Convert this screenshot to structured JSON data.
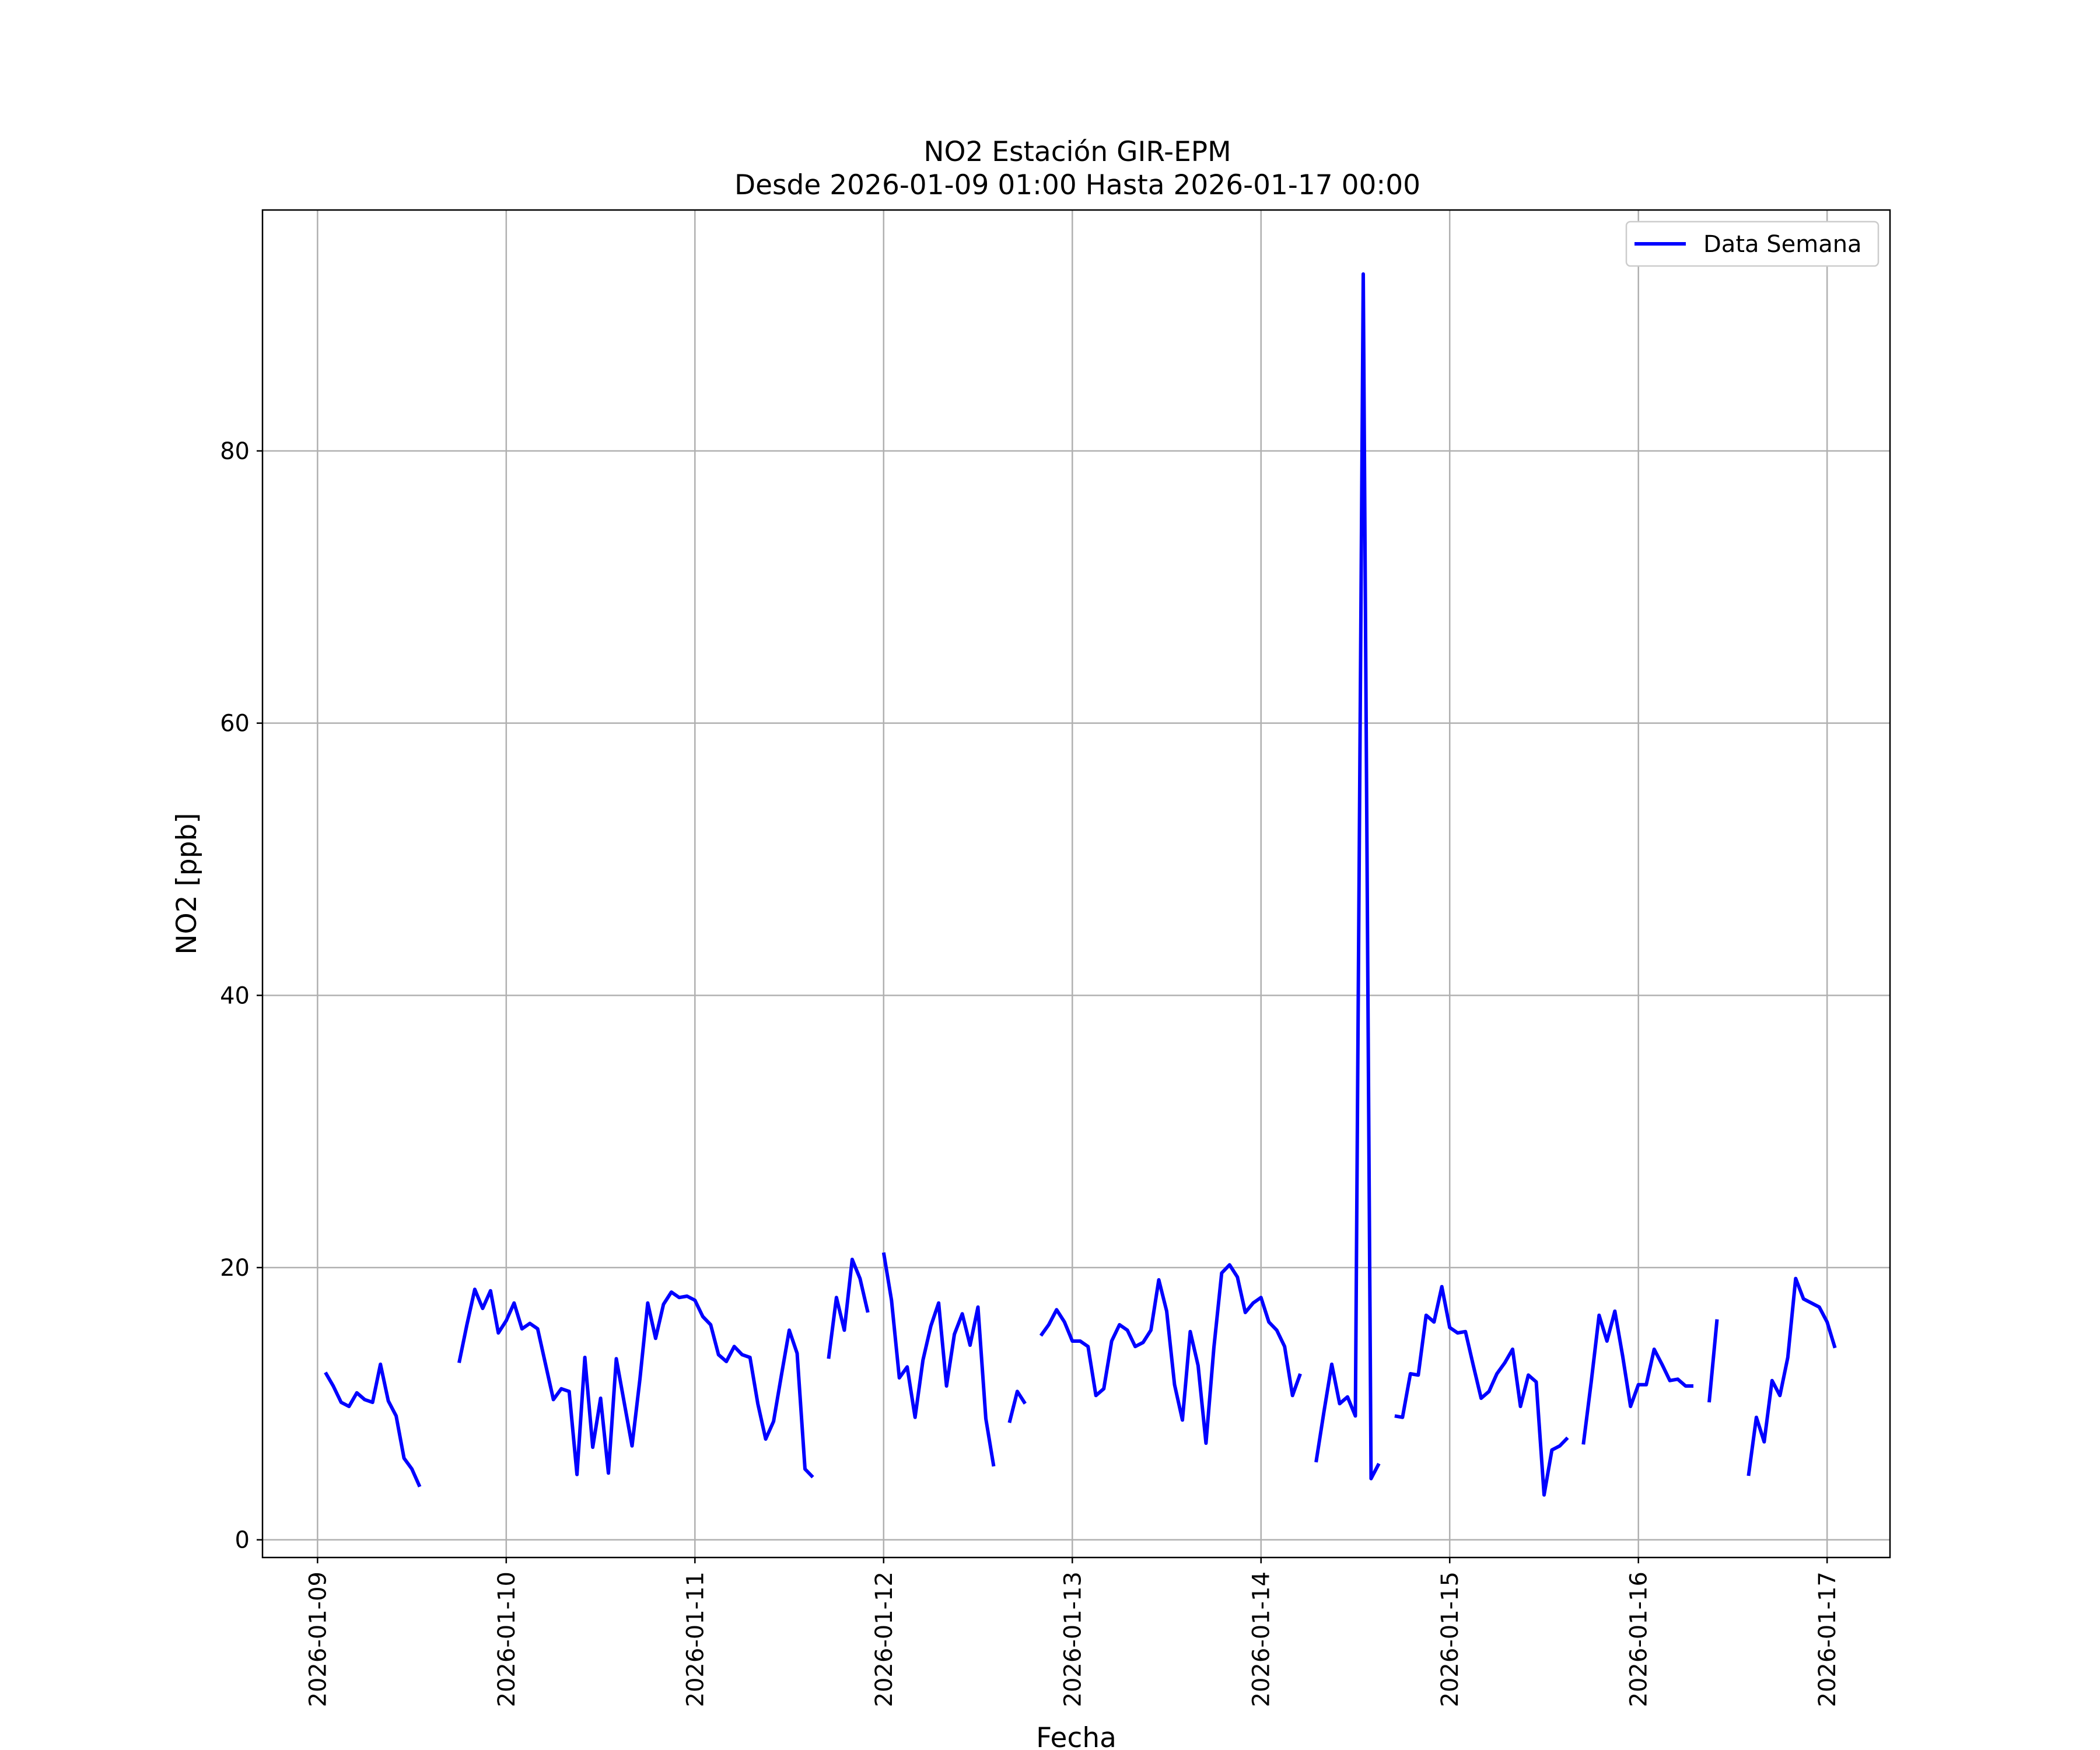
{
  "chart_data": {
    "type": "line",
    "title": "NO2 Estación GIR-EPM",
    "subtitle": "Desde 2026-01-09 01:00 Hasta 2026-01-17 00:00",
    "xlabel": "Fecha",
    "ylabel": "NO2 [ppb]",
    "xlim": [
      "2026-01-08 17:00",
      "2026-01-17 08:00"
    ],
    "ylim": [
      -1.3,
      97.7
    ],
    "yticks": [
      0,
      20,
      40,
      60,
      80
    ],
    "xticks": [
      "2026-01-09",
      "2026-01-10",
      "2026-01-11",
      "2026-01-12",
      "2026-01-13",
      "2026-01-14",
      "2026-01-15",
      "2026-01-16",
      "2026-01-17"
    ],
    "grid": true,
    "legend_position": "top-right",
    "colors": {
      "line": "#0000ff",
      "grid": "#b0b0b0"
    },
    "series": [
      {
        "name": "Data Semana",
        "x_start": "2026-01-09 01:00",
        "x_step_hours": 1,
        "values": [
          12.3,
          11.3,
          10.1,
          9.8,
          10.8,
          10.3,
          10.1,
          12.9,
          10.2,
          9.1,
          6.0,
          5.2,
          3.9,
          null,
          null,
          null,
          null,
          13.0,
          15.8,
          18.4,
          17.0,
          18.3,
          15.2,
          16.1,
          17.4,
          15.5,
          15.9,
          15.5,
          12.9,
          10.3,
          11.1,
          10.9,
          4.8,
          13.4,
          6.8,
          10.4,
          4.9,
          13.3,
          10.1,
          6.9,
          11.8,
          17.4,
          14.8,
          17.3,
          18.2,
          17.8,
          17.9,
          17.6,
          16.4,
          15.8,
          13.6,
          13.1,
          14.2,
          13.6,
          13.4,
          10.0,
          7.4,
          8.7,
          12.1,
          15.4,
          13.7,
          5.2,
          4.6,
          null,
          13.3,
          17.8,
          15.4,
          20.6,
          19.2,
          16.7,
          null,
          21.1,
          17.6,
          11.9,
          12.7,
          9.0,
          13.2,
          15.7,
          17.4,
          11.3,
          15.1,
          16.6,
          14.3,
          17.1,
          8.9,
          5.4,
          null,
          8.6,
          10.9,
          10.0,
          null,
          15.0,
          15.8,
          16.9,
          16.0,
          14.6,
          14.6,
          14.2,
          10.6,
          11.1,
          14.6,
          15.8,
          15.4,
          14.2,
          14.5,
          15.4,
          19.1,
          16.8,
          11.4,
          8.8,
          15.3,
          12.8,
          7.1,
          14.1,
          19.6,
          20.2,
          19.3,
          16.7,
          17.4,
          17.8,
          16.0,
          15.4,
          14.2,
          10.6,
          12.2,
          null,
          5.7,
          9.4,
          12.9,
          10.0,
          10.5,
          9.1,
          93.0,
          4.5,
          5.6,
          null,
          9.1,
          9.0,
          12.2,
          12.1,
          16.5,
          16.0,
          18.6,
          15.6,
          15.2,
          15.3,
          12.8,
          10.4,
          10.9,
          12.2,
          13.0,
          14.0,
          9.8,
          12.1,
          11.6,
          3.3,
          6.6,
          6.9,
          7.5,
          null,
          7.0,
          11.6,
          16.5,
          14.6,
          16.8,
          13.5,
          9.8,
          11.4,
          11.4,
          14.0,
          12.9,
          11.7,
          11.8,
          11.3,
          11.3,
          null,
          10.1,
          16.2,
          null,
          null,
          null,
          4.7,
          9.0,
          7.2,
          11.7,
          10.6,
          13.4,
          19.2,
          17.7,
          17.4,
          17.1,
          16.0,
          14.1
        ]
      }
    ]
  }
}
